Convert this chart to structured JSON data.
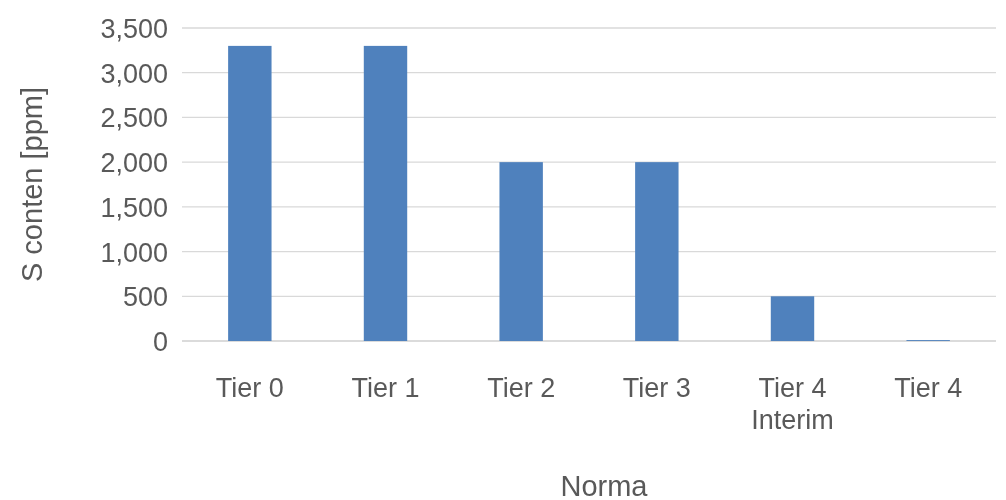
{
  "chart_data": {
    "type": "bar",
    "xlabel": "Norma",
    "ylabel": "S conten [ppm]",
    "categories": [
      "Tier 0",
      "Tier 1",
      "Tier 2",
      "Tier 3",
      "Tier 4 Interim",
      "Tier 4"
    ],
    "series": [
      {
        "color": "#4f81bd",
        "values": [
          3300,
          3300,
          2000,
          2000,
          500,
          10
        ]
      }
    ],
    "ylim": [
      0,
      3500
    ],
    "yticks": [
      {
        "value": 0,
        "label": "0"
      },
      {
        "value": 500,
        "label": "500"
      },
      {
        "value": 1000,
        "label": "1,000"
      },
      {
        "value": 1500,
        "label": "1,500"
      },
      {
        "value": 2000,
        "label": "2,000"
      },
      {
        "value": 2500,
        "label": "2,500"
      },
      {
        "value": 3000,
        "label": "3,000"
      },
      {
        "value": 3500,
        "label": "3,500"
      }
    ],
    "grid": "y"
  }
}
